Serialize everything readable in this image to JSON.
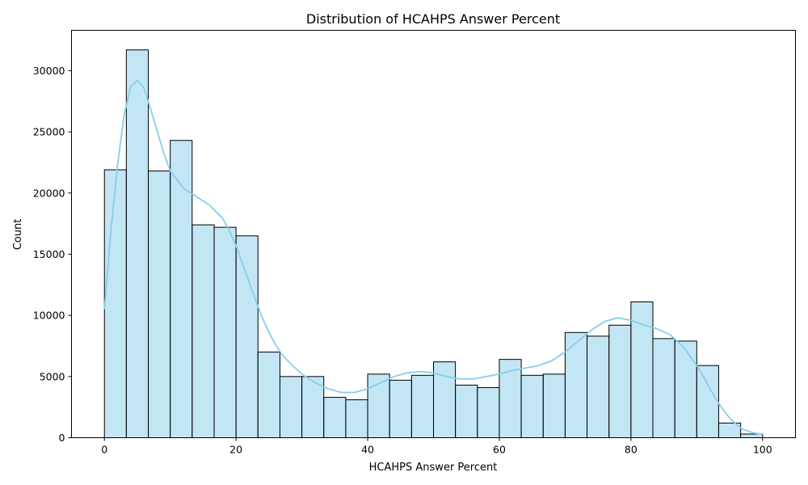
{
  "chart_data": {
    "type": "bar",
    "title": "Distribution of HCAHPS Answer Percent",
    "xlabel": "HCAHPS Answer Percent",
    "ylabel": "Count",
    "xlim": [
      -5,
      105
    ],
    "ylim": [
      0,
      33300
    ],
    "x_ticks": [
      0,
      20,
      40,
      60,
      80,
      100
    ],
    "y_ticks": [
      0,
      5000,
      10000,
      15000,
      20000,
      25000,
      30000
    ],
    "grid": false,
    "bar_color": "#87CEEB",
    "kde_color": "#87CEEB",
    "bins": [
      {
        "x0": 0.0,
        "x1": 3.33,
        "value": 21900
      },
      {
        "x0": 3.33,
        "x1": 6.67,
        "value": 31700
      },
      {
        "x0": 6.67,
        "x1": 10.0,
        "value": 21800
      },
      {
        "x0": 10.0,
        "x1": 13.33,
        "value": 24300
      },
      {
        "x0": 13.33,
        "x1": 16.67,
        "value": 17400
      },
      {
        "x0": 16.67,
        "x1": 20.0,
        "value": 17200
      },
      {
        "x0": 20.0,
        "x1": 23.33,
        "value": 16500
      },
      {
        "x0": 23.33,
        "x1": 26.67,
        "value": 7000
      },
      {
        "x0": 26.67,
        "x1": 30.0,
        "value": 5000
      },
      {
        "x0": 30.0,
        "x1": 33.33,
        "value": 5000
      },
      {
        "x0": 33.33,
        "x1": 36.67,
        "value": 3300
      },
      {
        "x0": 36.67,
        "x1": 40.0,
        "value": 3100
      },
      {
        "x0": 40.0,
        "x1": 43.33,
        "value": 5200
      },
      {
        "x0": 43.33,
        "x1": 46.67,
        "value": 4700
      },
      {
        "x0": 46.67,
        "x1": 50.0,
        "value": 5100
      },
      {
        "x0": 50.0,
        "x1": 53.33,
        "value": 6200
      },
      {
        "x0": 53.33,
        "x1": 56.67,
        "value": 4300
      },
      {
        "x0": 56.67,
        "x1": 60.0,
        "value": 4100
      },
      {
        "x0": 60.0,
        "x1": 63.33,
        "value": 6400
      },
      {
        "x0": 63.33,
        "x1": 66.67,
        "value": 5100
      },
      {
        "x0": 66.67,
        "x1": 70.0,
        "value": 5200
      },
      {
        "x0": 70.0,
        "x1": 73.33,
        "value": 8600
      },
      {
        "x0": 73.33,
        "x1": 76.67,
        "value": 8300
      },
      {
        "x0": 76.67,
        "x1": 80.0,
        "value": 9200
      },
      {
        "x0": 80.0,
        "x1": 83.33,
        "value": 11100
      },
      {
        "x0": 83.33,
        "x1": 86.67,
        "value": 8100
      },
      {
        "x0": 86.67,
        "x1": 90.0,
        "value": 7900
      },
      {
        "x0": 90.0,
        "x1": 93.33,
        "value": 5900
      },
      {
        "x0": 93.33,
        "x1": 96.67,
        "value": 1200
      },
      {
        "x0": 96.67,
        "x1": 100.0,
        "value": 300
      }
    ],
    "kde": {
      "x": [
        0,
        1,
        2,
        3,
        4,
        5,
        6,
        7,
        8,
        9,
        10,
        12,
        14,
        16,
        18,
        19,
        20,
        21,
        22,
        23,
        24,
        25,
        26,
        27,
        28,
        29,
        30,
        32,
        34,
        36,
        38,
        40,
        42,
        44,
        46,
        48,
        50,
        52,
        54,
        56,
        58,
        60,
        62,
        64,
        66,
        68,
        70,
        72,
        74,
        76,
        78,
        80,
        82,
        84,
        86,
        88,
        90,
        91,
        92,
        93,
        94,
        95,
        96,
        97,
        98,
        99,
        100
      ],
      "y": [
        10500,
        17000,
        22300,
        26400,
        28700,
        29200,
        28600,
        26900,
        25100,
        23300,
        21800,
        20400,
        19700,
        19000,
        17900,
        16900,
        15700,
        14200,
        12700,
        11200,
        9800,
        8600,
        7600,
        6800,
        6200,
        5700,
        5200,
        4500,
        4000,
        3700,
        3700,
        4000,
        4500,
        5000,
        5300,
        5400,
        5300,
        5000,
        4800,
        4800,
        5000,
        5200,
        5500,
        5700,
        5900,
        6300,
        7000,
        7900,
        8800,
        9500,
        9800,
        9600,
        9200,
        8900,
        8400,
        7400,
        5900,
        5000,
        4000,
        3100,
        2300,
        1600,
        1100,
        700,
        500,
        350,
        300
      ]
    }
  }
}
